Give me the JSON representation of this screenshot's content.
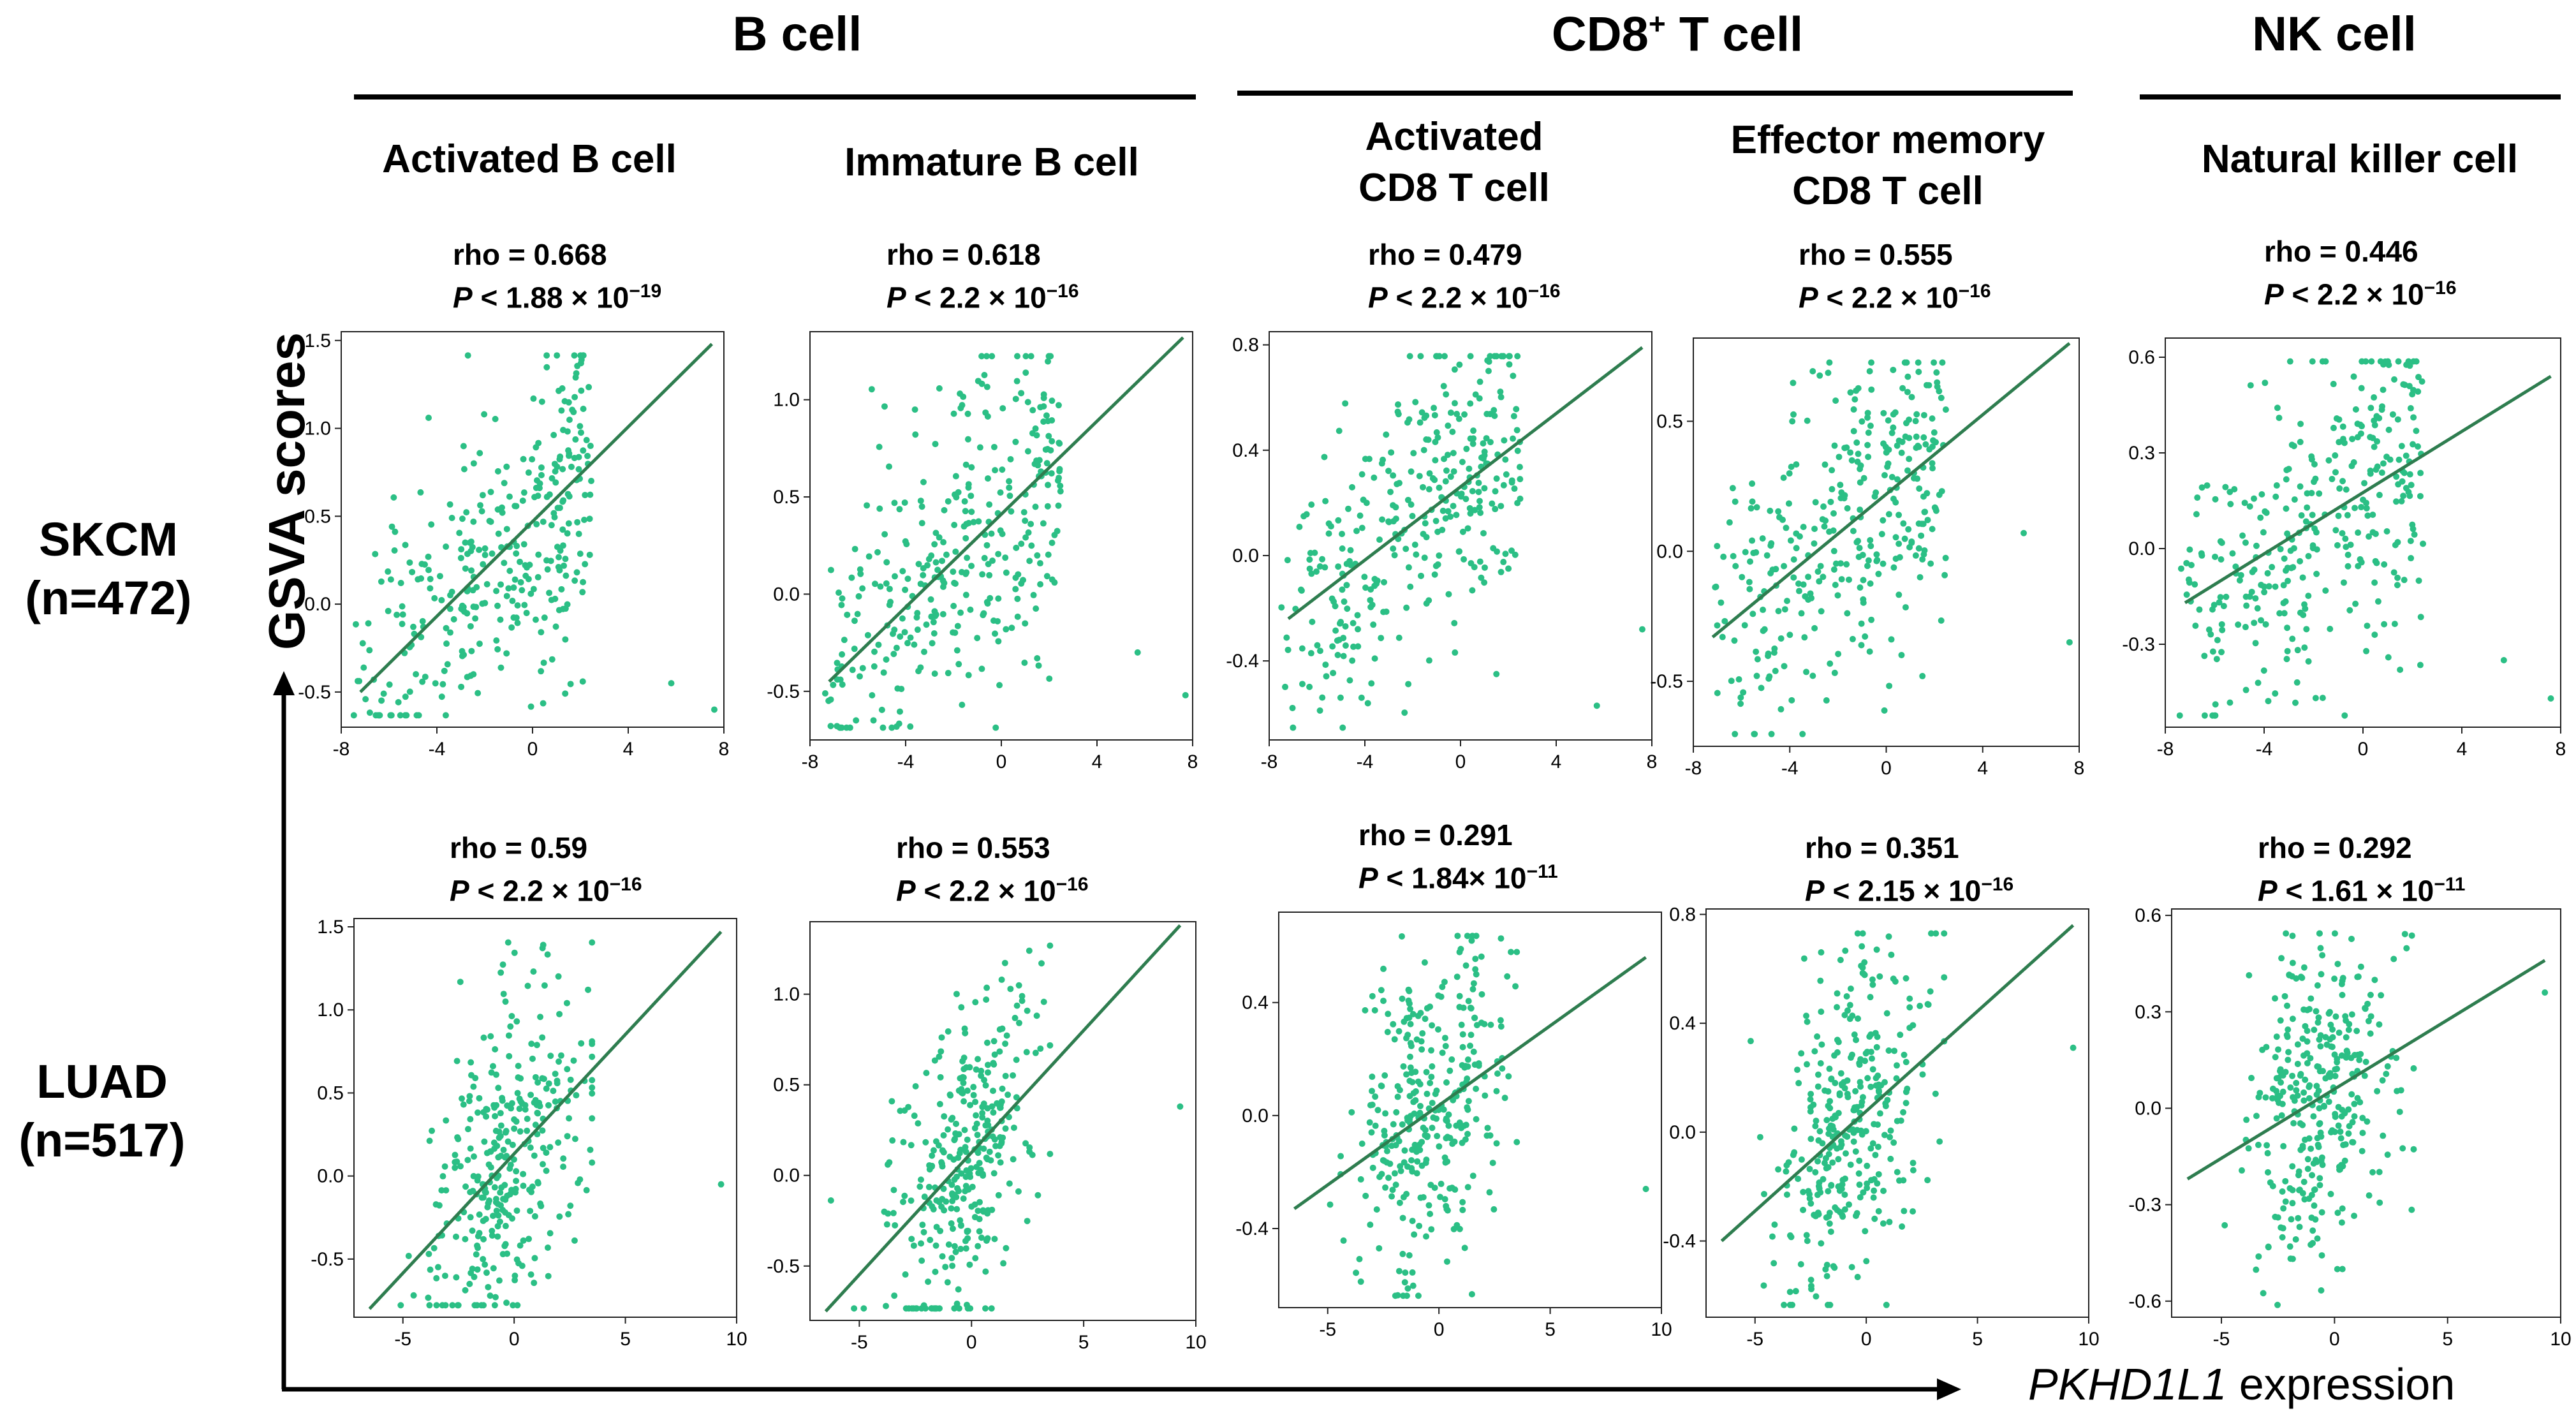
{
  "groups": {
    "b_cell": "B cell",
    "cd8_main": "CD8",
    "cd8_sup": "+",
    "cd8_tail": " T cell",
    "nk_cell": "NK cell"
  },
  "axes": {
    "y_label": "GSVA scores",
    "x_label_gene": "PKHD1L1",
    "x_label_rest": " expression"
  },
  "rows": [
    {
      "label_line1": "SKCM",
      "label_line2": "(n=472)"
    },
    {
      "label_line1": "LUAD",
      "label_line2": "(n=517)"
    }
  ],
  "panels": [
    {
      "title1": "Activated B cell",
      "title2": "",
      "rho_text": "rho = 0.668",
      "p_text": "P",
      "p_rest": " < 1.88 × 10",
      "p_exp": "−19"
    },
    {
      "title1": "Immature B cell",
      "title2": "",
      "rho_text": "rho = 0.618",
      "p_text": "P",
      "p_rest": " < 2.2 × 10",
      "p_exp": "−16"
    },
    {
      "title1": "Activated",
      "title2": "CD8 T cell",
      "rho_text": "rho = 0.479",
      "p_text": "P",
      "p_rest": " < 2.2 × 10",
      "p_exp": "−16"
    },
    {
      "title1": "Effector memory",
      "title2": "CD8 T cell",
      "rho_text": "rho = 0.555",
      "p_text": "P",
      "p_rest": " < 2.2 × 10",
      "p_exp": "−16"
    },
    {
      "title1": "Natural killer cell",
      "title2": "",
      "rho_text": "rho = 0.446",
      "p_text": "P",
      "p_rest": " < 2.2 × 10",
      "p_exp": "−16"
    },
    {
      "rho_text": "rho = 0.59",
      "p_text": "P",
      "p_rest": " < 2.2 × 10",
      "p_exp": "−16"
    },
    {
      "rho_text": "rho = 0.553",
      "p_text": "P",
      "p_rest": " < 2.2 × 10",
      "p_exp": "−16"
    },
    {
      "rho_text": "rho = 0.291",
      "p_text": "P",
      "p_rest": " < 1.84× 10",
      "p_exp": "−11"
    },
    {
      "rho_text": "rho = 0.351",
      "p_text": "P",
      "p_rest": " < 2.15 × 10",
      "p_exp": "−16"
    },
    {
      "rho_text": "rho = 0.292",
      "p_text": "P",
      "p_rest": " < 1.61 × 10",
      "p_exp": "−11"
    }
  ],
  "colors": {
    "points": "#2bbf85",
    "fit_line": "#2e7d4f"
  },
  "chart_data": [
    {
      "type": "scatter",
      "dataset": "SKCM",
      "cell_type": "Activated B cell",
      "n": 472,
      "rho": 0.668,
      "xlim": [
        -8,
        8
      ],
      "ylim": [
        -0.7,
        1.55
      ],
      "xticks": [
        -8,
        -4,
        0,
        4,
        8
      ],
      "yticks": [
        -0.5,
        0.0,
        0.5,
        1.0,
        1.5
      ],
      "ytick_labels": [
        "-0.5",
        "0.0",
        "0.5",
        "1.0",
        "1.5"
      ],
      "fit_line": [
        [
          -7.2,
          -0.5
        ],
        [
          7.5,
          1.48
        ]
      ],
      "x_range": [
        -7.5,
        2.5
      ],
      "outliers": [
        [
          5.8,
          -0.45
        ],
        [
          7.6,
          -0.6
        ],
        [
          2.1,
          -0.44
        ]
      ]
    },
    {
      "type": "scatter",
      "dataset": "SKCM",
      "cell_type": "Immature B cell",
      "n": 472,
      "rho": 0.618,
      "xlim": [
        -8,
        8
      ],
      "ylim": [
        -0.75,
        1.35
      ],
      "xticks": [
        -8,
        -4,
        0,
        4,
        8
      ],
      "yticks": [
        -0.5,
        0.0,
        0.5,
        1.0
      ],
      "ytick_labels": [
        "-0.5",
        "0.0",
        "0.5",
        "1.0"
      ],
      "fit_line": [
        [
          -7.2,
          -0.45
        ],
        [
          7.6,
          1.32
        ]
      ],
      "x_range": [
        -7.5,
        2.5
      ],
      "outliers": [
        [
          5.7,
          -0.3
        ],
        [
          7.7,
          -0.52
        ],
        [
          1.5,
          -0.33
        ]
      ]
    },
    {
      "type": "scatter",
      "dataset": "SKCM",
      "cell_type": "Activated CD8 T cell",
      "n": 472,
      "rho": 0.479,
      "xlim": [
        -8,
        8
      ],
      "ylim": [
        -0.7,
        0.85
      ],
      "xticks": [
        -8,
        -4,
        0,
        4,
        8
      ],
      "yticks": [
        -0.4,
        0.0,
        0.4,
        0.8
      ],
      "ytick_labels": [
        "-0.4",
        "0.0",
        "0.4",
        "0.8"
      ],
      "fit_line": [
        [
          -7.2,
          -0.24
        ],
        [
          7.6,
          0.79
        ]
      ],
      "x_range": [
        -7.5,
        2.5
      ],
      "outliers": [
        [
          5.7,
          -0.57
        ],
        [
          7.6,
          -0.28
        ],
        [
          1.5,
          -0.45
        ]
      ]
    },
    {
      "type": "scatter",
      "dataset": "SKCM",
      "cell_type": "Effector memory CD8 T cell",
      "n": 472,
      "rho": 0.555,
      "xlim": [
        -8,
        8
      ],
      "ylim": [
        -0.75,
        0.82
      ],
      "xticks": [
        -8,
        -4,
        0,
        4,
        8
      ],
      "yticks": [
        -0.5,
        0.0,
        0.5
      ],
      "ytick_labels": [
        "-0.5",
        "0.0",
        "0.5"
      ],
      "fit_line": [
        [
          -7.2,
          -0.33
        ],
        [
          7.6,
          0.8
        ]
      ],
      "x_range": [
        -7.5,
        2.5
      ],
      "outliers": [
        [
          5.7,
          0.07
        ],
        [
          7.6,
          -0.35
        ],
        [
          1.5,
          -0.48
        ]
      ]
    },
    {
      "type": "scatter",
      "dataset": "SKCM",
      "cell_type": "Natural killer cell",
      "n": 472,
      "rho": 0.446,
      "xlim": [
        -8,
        8
      ],
      "ylim": [
        -0.56,
        0.66
      ],
      "xticks": [
        -8,
        -4,
        0,
        4,
        8
      ],
      "yticks": [
        -0.3,
        0.0,
        0.3,
        0.6
      ],
      "ytick_labels": [
        "-0.3",
        "0.0",
        "0.3",
        "0.6"
      ],
      "fit_line": [
        [
          -7.2,
          -0.17
        ],
        [
          7.6,
          0.54
        ]
      ],
      "x_range": [
        -7.5,
        2.5
      ],
      "outliers": [
        [
          5.7,
          -0.35
        ],
        [
          7.6,
          -0.47
        ],
        [
          1.5,
          -0.38
        ]
      ]
    },
    {
      "type": "scatter",
      "dataset": "LUAD",
      "cell_type": "Activated B cell",
      "n": 517,
      "rho": 0.59,
      "xlim": [
        -7.2,
        10
      ],
      "ylim": [
        -0.85,
        1.55
      ],
      "xticks": [
        -5,
        0,
        5,
        10
      ],
      "yticks": [
        -0.5,
        0.0,
        0.5,
        1.0,
        1.5
      ],
      "ytick_labels": [
        "-0.5",
        "0.0",
        "0.5",
        "1.0",
        "1.5"
      ],
      "fit_line": [
        [
          -6.5,
          -0.8
        ],
        [
          9.3,
          1.47
        ]
      ],
      "x_range": [
        -6.5,
        3.5
      ],
      "outliers": [
        [
          9.3,
          -0.05
        ]
      ]
    },
    {
      "type": "scatter",
      "dataset": "LUAD",
      "cell_type": "Immature B cell",
      "n": 517,
      "rho": 0.553,
      "xlim": [
        -7.2,
        10
      ],
      "ylim": [
        -0.8,
        1.4
      ],
      "xticks": [
        -5,
        0,
        5,
        10
      ],
      "yticks": [
        -0.5,
        0.0,
        0.5,
        1.0
      ],
      "ytick_labels": [
        "-0.5",
        "0.0",
        "0.5",
        "1.0"
      ],
      "fit_line": [
        [
          -6.5,
          -0.75
        ],
        [
          9.3,
          1.38
        ]
      ],
      "x_range": [
        -6.5,
        3.5
      ],
      "outliers": [
        [
          9.3,
          0.38
        ]
      ]
    },
    {
      "type": "scatter",
      "dataset": "LUAD",
      "cell_type": "Activated CD8 T cell",
      "n": 517,
      "rho": 0.291,
      "xlim": [
        -7.2,
        10
      ],
      "ylim": [
        -0.68,
        0.72
      ],
      "xticks": [
        -5,
        0,
        5,
        10
      ],
      "yticks": [
        -0.4,
        0.0,
        0.4
      ],
      "ytick_labels": [
        "-0.4",
        "0.0",
        "0.4"
      ],
      "fit_line": [
        [
          -6.5,
          -0.33
        ],
        [
          9.3,
          0.56
        ]
      ],
      "x_range": [
        -6.5,
        3.5
      ],
      "outliers": [
        [
          9.3,
          -0.26
        ]
      ]
    },
    {
      "type": "scatter",
      "dataset": "LUAD",
      "cell_type": "Effector memory CD8 T cell",
      "n": 517,
      "rho": 0.351,
      "xlim": [
        -7.2,
        10
      ],
      "ylim": [
        -0.68,
        0.82
      ],
      "xticks": [
        -5,
        0,
        5,
        10
      ],
      "yticks": [
        -0.4,
        0.0,
        0.4,
        0.8
      ],
      "ytick_labels": [
        "-0.4",
        "0.0",
        "0.4",
        "0.8"
      ],
      "fit_line": [
        [
          -6.5,
          -0.4
        ],
        [
          9.3,
          0.76
        ]
      ],
      "x_range": [
        -6.5,
        3.5
      ],
      "outliers": [
        [
          9.3,
          0.31
        ]
      ]
    },
    {
      "type": "scatter",
      "dataset": "LUAD",
      "cell_type": "Natural killer cell",
      "n": 517,
      "rho": 0.292,
      "xlim": [
        -7.2,
        10
      ],
      "ylim": [
        -0.65,
        0.62
      ],
      "xticks": [
        -5,
        0,
        5,
        10
      ],
      "yticks": [
        -0.6,
        -0.3,
        0.0,
        0.3,
        0.6
      ],
      "ytick_labels": [
        "-0.6",
        "-0.3",
        "0.0",
        "0.3",
        "0.6"
      ],
      "fit_line": [
        [
          -6.5,
          -0.22
        ],
        [
          9.3,
          0.46
        ]
      ],
      "x_range": [
        -6.5,
        3.5
      ],
      "outliers": [
        [
          9.3,
          0.36
        ]
      ]
    }
  ]
}
